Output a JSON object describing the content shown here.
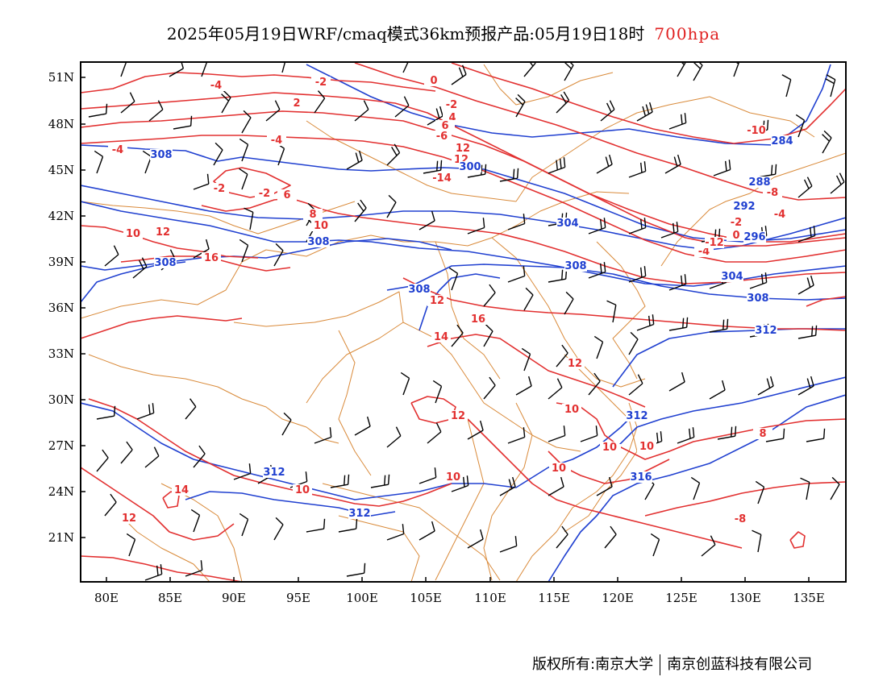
{
  "title": {
    "main": "2025年05月19日WRF/cmaq模式36km预报产品:05月19日18时",
    "level": "700hpa"
  },
  "axes": {
    "lat_labels": [
      "51N",
      "48N",
      "45N",
      "42N",
      "39N",
      "36N",
      "33N",
      "30N",
      "27N",
      "24N",
      "21N"
    ],
    "lon_labels": [
      "80E",
      "85E",
      "90E",
      "95E",
      "100E",
      "105E",
      "110E",
      "115E",
      "120E",
      "125E",
      "130E",
      "135E"
    ]
  },
  "contours": {
    "temperature_color": "#e23030",
    "height_color": "#2040d0",
    "temperature_labels": [
      "-4",
      "-2",
      "0",
      "2",
      "-4",
      "-2",
      "4",
      "6",
      "-6",
      "10",
      "12",
      "-14",
      "-4",
      "-2",
      "-2",
      "6",
      "8",
      "10",
      "12",
      "10",
      "12",
      "16",
      "12",
      "16",
      "14",
      "12",
      "12",
      "10",
      "10",
      "10",
      "10",
      "12",
      "10",
      "14",
      "12",
      "-8",
      "-10",
      "-8",
      "-4",
      "-2",
      "0",
      "-4",
      "-12",
      "8",
      "10",
      "10"
    ],
    "height_labels": [
      "308",
      "300",
      "284",
      "288",
      "292",
      "304",
      "296",
      "308",
      "308",
      "308",
      "304",
      "308",
      "312",
      "308",
      "312",
      "312",
      "312",
      "316"
    ]
  },
  "colors": {
    "border": "#d98a3a",
    "barb": "#000000",
    "frame": "#000000"
  },
  "footer": {
    "copyright": "版权所有:南京大学",
    "company": "南京创蓝科技有限公司"
  }
}
